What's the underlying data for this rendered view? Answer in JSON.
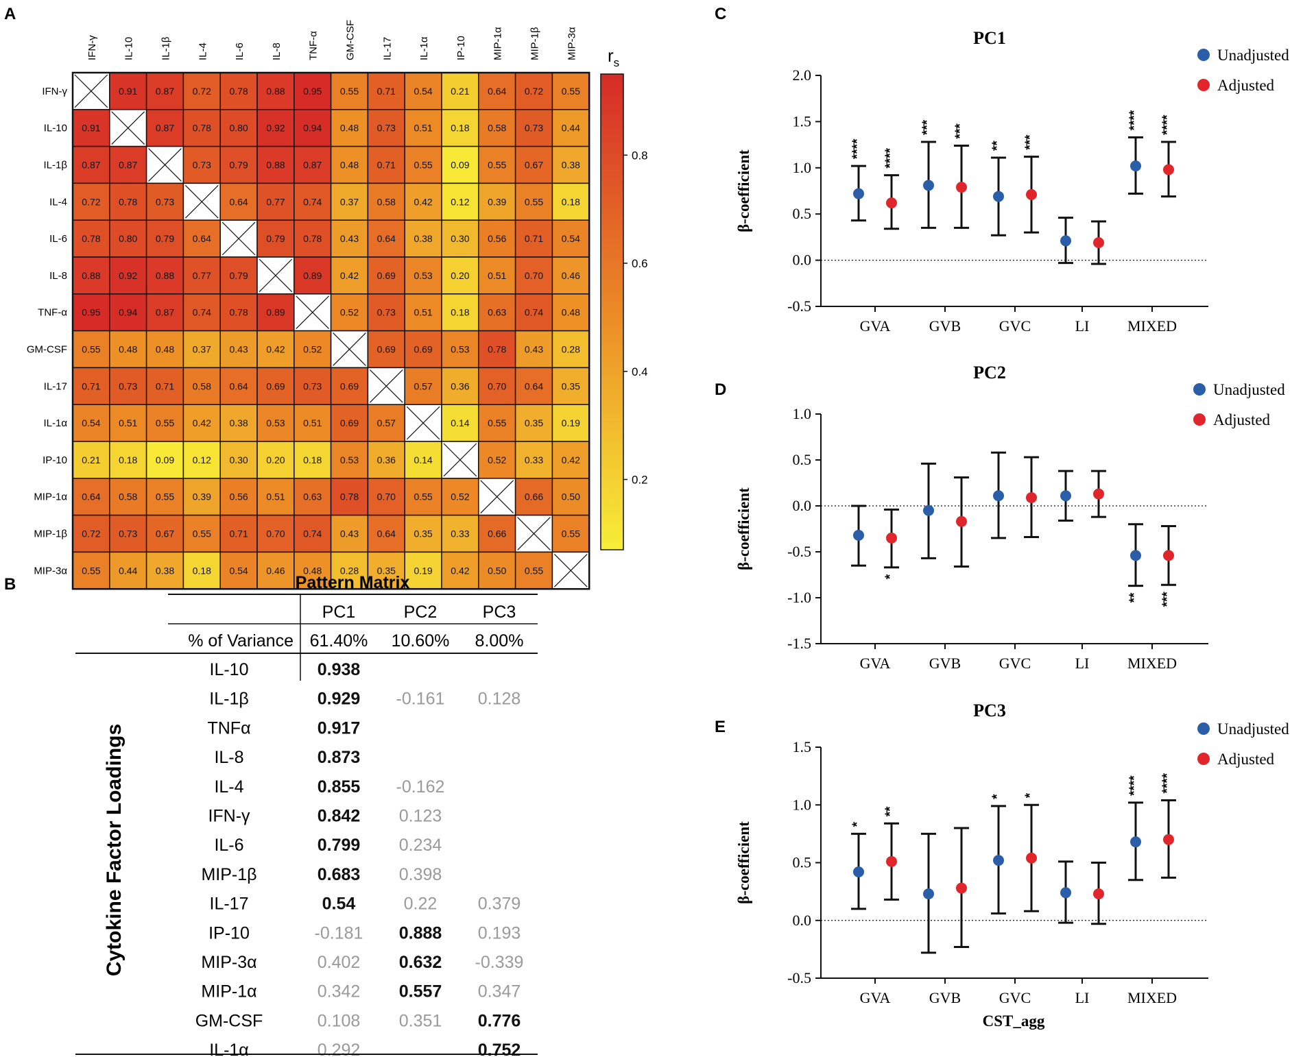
{
  "panels": {
    "A": "A",
    "B": "B",
    "C": "C",
    "D": "D",
    "E": "E"
  },
  "colors": {
    "unadjusted": "#2a5ea8",
    "adjusted": "#e0262b",
    "heat_low": "#f7ee36",
    "heat_mid": "#ec8a26",
    "heat_high": "#d62b27"
  },
  "chart_data": [
    {
      "type": "heatmap",
      "panel": "A",
      "colorbar_label": "rs",
      "colorbar_label_main": "r",
      "colorbar_label_sub": "s",
      "colorbar_ticks": [
        "0.2",
        "0.4",
        "0.6",
        "0.8"
      ],
      "colorbar_tick_values": [
        0.2,
        0.4,
        0.6,
        0.8
      ],
      "colorbar_range": [
        0.07,
        0.95
      ],
      "labels": [
        "IFN-γ",
        "IL-10",
        "IL-1β",
        "IL-4",
        "IL-6",
        "IL-8",
        "TNF-α",
        "GM-CSF",
        "IL-17",
        "IL-1α",
        "IP-10",
        "MIP-1α",
        "MIP-1β",
        "MIP-3α"
      ],
      "matrix": [
        [
          null,
          "0.91",
          "0.87",
          "0.72",
          "0.78",
          "0.88",
          "0.95",
          "0.55",
          "0.71",
          "0.54",
          "0.21",
          "0.64",
          "0.72",
          "0.55"
        ],
        [
          "0.91",
          null,
          "0.87",
          "0.78",
          "0.80",
          "0.92",
          "0.94",
          "0.48",
          "0.73",
          "0.51",
          "0.18",
          "0.58",
          "0.73",
          "0.44"
        ],
        [
          "0.87",
          "0.87",
          null,
          "0.73",
          "0.79",
          "0.88",
          "0.87",
          "0.48",
          "0.71",
          "0.55",
          "0.09",
          "0.55",
          "0.67",
          "0.38"
        ],
        [
          "0.72",
          "0.78",
          "0.73",
          null,
          "0.64",
          "0.77",
          "0.74",
          "0.37",
          "0.58",
          "0.42",
          "0.12",
          "0.39",
          "0.55",
          "0.18"
        ],
        [
          "0.78",
          "0.80",
          "0.79",
          "0.64",
          null,
          "0.79",
          "0.78",
          "0.43",
          "0.64",
          "0.38",
          "0.30",
          "0.56",
          "0.71",
          "0.54"
        ],
        [
          "0.88",
          "0.92",
          "0.88",
          "0.77",
          "0.79",
          null,
          "0.89",
          "0.42",
          "0.69",
          "0.53",
          "0.20",
          "0.51",
          "0.70",
          "0.46"
        ],
        [
          "0.95",
          "0.94",
          "0.87",
          "0.74",
          "0.78",
          "0.89",
          null,
          "0.52",
          "0.73",
          "0.51",
          "0.18",
          "0.63",
          "0.74",
          "0.48"
        ],
        [
          "0.55",
          "0.48",
          "0.48",
          "0.37",
          "0.43",
          "0.42",
          "0.52",
          null,
          "0.69",
          "0.69",
          "0.53",
          "0.78",
          "0.43",
          "0.28"
        ],
        [
          "0.71",
          "0.73",
          "0.71",
          "0.58",
          "0.64",
          "0.69",
          "0.73",
          "0.69",
          null,
          "0.57",
          "0.36",
          "0.70",
          "0.64",
          "0.35"
        ],
        [
          "0.54",
          "0.51",
          "0.55",
          "0.42",
          "0.38",
          "0.53",
          "0.51",
          "0.69",
          "0.57",
          null,
          "0.14",
          "0.55",
          "0.35",
          "0.19"
        ],
        [
          "0.21",
          "0.18",
          "0.09",
          "0.12",
          "0.30",
          "0.20",
          "0.18",
          "0.53",
          "0.36",
          "0.14",
          null,
          "0.52",
          "0.33",
          "0.42"
        ],
        [
          "0.64",
          "0.58",
          "0.55",
          "0.39",
          "0.56",
          "0.51",
          "0.63",
          "0.78",
          "0.70",
          "0.55",
          "0.52",
          null,
          "0.66",
          "0.50"
        ],
        [
          "0.72",
          "0.73",
          "0.67",
          "0.55",
          "0.71",
          "0.70",
          "0.74",
          "0.43",
          "0.64",
          "0.35",
          "0.33",
          "0.66",
          null,
          "0.55"
        ],
        [
          "0.55",
          "0.44",
          "0.38",
          "0.18",
          "0.54",
          "0.46",
          "0.48",
          "0.28",
          "0.35",
          "0.19",
          "0.42",
          "0.50",
          "0.55",
          null
        ]
      ]
    },
    {
      "type": "table",
      "panel": "B",
      "title": "Pattern Matrix",
      "row_header": "% of Variance",
      "side_label": "Cytokine Factor Loadings",
      "columns": [
        "PC1",
        "PC2",
        "PC3"
      ],
      "variance": [
        "61.40%",
        "10.60%",
        "8.00%"
      ],
      "rows": [
        {
          "name": "IL-10",
          "cells": [
            {
              "v": "0.938",
              "b": true
            },
            {
              "v": ""
            },
            {
              "v": ""
            }
          ]
        },
        {
          "name": "IL-1β",
          "cells": [
            {
              "v": "0.929",
              "b": true
            },
            {
              "v": "-0.161"
            },
            {
              "v": "0.128"
            }
          ]
        },
        {
          "name": "TNFα",
          "cells": [
            {
              "v": "0.917",
              "b": true
            },
            {
              "v": ""
            },
            {
              "v": ""
            }
          ]
        },
        {
          "name": "IL-8",
          "cells": [
            {
              "v": "0.873",
              "b": true
            },
            {
              "v": ""
            },
            {
              "v": ""
            }
          ]
        },
        {
          "name": "IL-4",
          "cells": [
            {
              "v": "0.855",
              "b": true
            },
            {
              "v": "-0.162"
            },
            {
              "v": ""
            }
          ]
        },
        {
          "name": "IFN-γ",
          "cells": [
            {
              "v": "0.842",
              "b": true
            },
            {
              "v": "0.123"
            },
            {
              "v": ""
            }
          ]
        },
        {
          "name": "IL-6",
          "cells": [
            {
              "v": "0.799",
              "b": true
            },
            {
              "v": "0.234"
            },
            {
              "v": ""
            }
          ]
        },
        {
          "name": "MIP-1β",
          "cells": [
            {
              "v": "0.683",
              "b": true
            },
            {
              "v": "0.398"
            },
            {
              "v": ""
            }
          ]
        },
        {
          "name": "IL-17",
          "cells": [
            {
              "v": "0.54",
              "b": true
            },
            {
              "v": "0.22"
            },
            {
              "v": "0.379"
            }
          ]
        },
        {
          "name": "IP-10",
          "cells": [
            {
              "v": "-0.181"
            },
            {
              "v": "0.888",
              "b": true
            },
            {
              "v": "0.193"
            }
          ]
        },
        {
          "name": "MIP-3α",
          "cells": [
            {
              "v": "0.402"
            },
            {
              "v": "0.632",
              "b": true
            },
            {
              "v": "-0.339"
            }
          ]
        },
        {
          "name": "MIP-1α",
          "cells": [
            {
              "v": "0.342"
            },
            {
              "v": "0.557",
              "b": true
            },
            {
              "v": "0.347"
            }
          ]
        },
        {
          "name": "GM-CSF",
          "cells": [
            {
              "v": "0.108"
            },
            {
              "v": "0.351"
            },
            {
              "v": "0.776",
              "b": true
            }
          ]
        },
        {
          "name": "IL-1α",
          "cells": [
            {
              "v": "0.292"
            },
            {
              "v": ""
            },
            {
              "v": "0.752",
              "b": true
            }
          ]
        }
      ]
    },
    {
      "type": "scatter",
      "panel": "C",
      "title": "PC1",
      "ylabel": "β-coefficient",
      "xlabel": "",
      "categories": [
        "GVA",
        "GVB",
        "GVC",
        "LI",
        "MIXED"
      ],
      "ylim": [
        -0.5,
        2.0
      ],
      "yticks": [
        -0.5,
        0.0,
        0.5,
        1.0,
        1.5,
        2.0
      ],
      "ytick_labels": [
        "-0.5",
        "0.0",
        "0.5",
        "1.0",
        "1.5",
        "2.0"
      ],
      "legend_position": "top-right",
      "series": [
        {
          "name": "Unadjusted",
          "values": [
            0.72,
            0.81,
            0.69,
            0.21,
            1.02
          ],
          "lower": [
            0.43,
            0.35,
            0.27,
            -0.03,
            0.72
          ],
          "upper": [
            1.02,
            1.28,
            1.11,
            0.46,
            1.33
          ],
          "sig": [
            "****",
            "***",
            "**",
            "",
            "****"
          ],
          "sig_pos": [
            "top",
            "top",
            "top",
            "top",
            "top"
          ]
        },
        {
          "name": "Adjusted",
          "values": [
            0.62,
            0.79,
            0.71,
            0.19,
            0.98
          ],
          "lower": [
            0.34,
            0.35,
            0.3,
            -0.04,
            0.69
          ],
          "upper": [
            0.92,
            1.24,
            1.12,
            0.42,
            1.28
          ],
          "sig": [
            "****",
            "***",
            "***",
            "",
            "****"
          ],
          "sig_pos": [
            "top",
            "top",
            "top",
            "top",
            "top"
          ]
        }
      ]
    },
    {
      "type": "scatter",
      "panel": "D",
      "title": "PC2",
      "ylabel": "β-coefficient",
      "xlabel": "",
      "categories": [
        "GVA",
        "GVB",
        "GVC",
        "LI",
        "MIXED"
      ],
      "ylim": [
        -1.5,
        1.0
      ],
      "yticks": [
        -1.5,
        -1.0,
        -0.5,
        0.0,
        0.5,
        1.0
      ],
      "ytick_labels": [
        "-1.5",
        "-1.0",
        "-0.5",
        "0.0",
        "0.5",
        "1.0"
      ],
      "legend_position": "top-right",
      "series": [
        {
          "name": "Unadjusted",
          "values": [
            -0.32,
            -0.05,
            0.11,
            0.11,
            -0.54
          ],
          "lower": [
            -0.65,
            -0.57,
            -0.35,
            -0.16,
            -0.87
          ],
          "upper": [
            0.0,
            0.46,
            0.58,
            0.38,
            -0.2
          ],
          "sig": [
            "",
            "",
            "",
            "",
            "**"
          ],
          "sig_pos": [
            "bottom",
            "bottom",
            "bottom",
            "bottom",
            "bottom"
          ]
        },
        {
          "name": "Adjusted",
          "values": [
            -0.35,
            -0.17,
            0.09,
            0.13,
            -0.54
          ],
          "lower": [
            -0.67,
            -0.66,
            -0.34,
            -0.12,
            -0.86
          ],
          "upper": [
            -0.04,
            0.31,
            0.53,
            0.38,
            -0.22
          ],
          "sig": [
            "*",
            "",
            "",
            "",
            "***"
          ],
          "sig_pos": [
            "bottom",
            "bottom",
            "bottom",
            "bottom",
            "bottom"
          ]
        }
      ]
    },
    {
      "type": "scatter",
      "panel": "E",
      "title": "PC3",
      "ylabel": "β-coefficient",
      "xlabel": "CST_agg",
      "categories": [
        "GVA",
        "GVB",
        "GVC",
        "LI",
        "MIXED"
      ],
      "ylim": [
        -0.5,
        1.5
      ],
      "yticks": [
        -0.5,
        0.0,
        0.5,
        1.0,
        1.5
      ],
      "ytick_labels": [
        "-0.5",
        "0.0",
        "0.5",
        "1.0",
        "1.5"
      ],
      "legend_position": "top-right",
      "series": [
        {
          "name": "Unadjusted",
          "values": [
            0.42,
            0.23,
            0.52,
            0.24,
            0.68
          ],
          "lower": [
            0.1,
            -0.28,
            0.06,
            -0.02,
            0.35
          ],
          "upper": [
            0.75,
            0.75,
            0.99,
            0.51,
            1.02
          ],
          "sig": [
            "*",
            "",
            "*",
            "",
            "****"
          ],
          "sig_pos": [
            "top",
            "top",
            "top",
            "top",
            "top"
          ]
        },
        {
          "name": "Adjusted",
          "values": [
            0.51,
            0.28,
            0.54,
            0.23,
            0.7
          ],
          "lower": [
            0.18,
            -0.23,
            0.08,
            -0.03,
            0.37
          ],
          "upper": [
            0.84,
            0.8,
            1.0,
            0.5,
            1.04
          ],
          "sig": [
            "**",
            "",
            "*",
            "",
            "****"
          ],
          "sig_pos": [
            "top",
            "top",
            "top",
            "top",
            "top"
          ]
        }
      ]
    }
  ]
}
